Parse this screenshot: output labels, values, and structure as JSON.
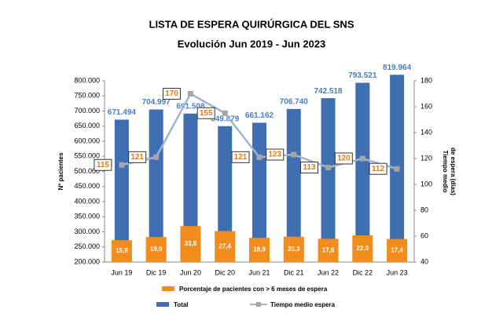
{
  "chart_data": {
    "type": "bar",
    "title": "LISTA DE ESPERA QUIRÚRGICA DEL SNS",
    "subtitle": "Evolución Jun 2019 - Jun 2023",
    "y_label": "Nº pacientes",
    "y2_label": [
      "Tiempo medio",
      "de espera (días)"
    ],
    "categories": [
      "Jun 19",
      "Dic 19",
      "Jun 20",
      "Dic 20",
      "Jun 21",
      "Dic 21",
      "Jun 22",
      "Dic 22",
      "Jun 23"
    ],
    "ylim": [
      200000,
      800000
    ],
    "yticks": [
      {
        "value": 200000,
        "label": "200.000"
      },
      {
        "value": 250000,
        "label": "250.000"
      },
      {
        "value": 300000,
        "label": "300.000"
      },
      {
        "value": 350000,
        "label": "350.000"
      },
      {
        "value": 400000,
        "label": "400.000"
      },
      {
        "value": 450000,
        "label": "450.000"
      },
      {
        "value": 500000,
        "label": "500.000"
      },
      {
        "value": 550000,
        "label": "550.000"
      },
      {
        "value": 600000,
        "label": "600.000"
      },
      {
        "value": 650000,
        "label": "650.000"
      },
      {
        "value": 700000,
        "label": "700.000"
      },
      {
        "value": 750000,
        "label": "750.000"
      },
      {
        "value": 800000,
        "label": "800.000"
      }
    ],
    "y2lim": [
      40,
      180
    ],
    "y2ticks": [
      40,
      60,
      80,
      100,
      120,
      140,
      160,
      180
    ],
    "series": [
      {
        "name": "Total",
        "type": "bar",
        "color": "#3f6fb0",
        "values": [
          671494,
          704997,
          691508,
          649879,
          661162,
          706740,
          742518,
          793521,
          819964
        ],
        "value_labels": [
          "671.494",
          "704.997",
          "691.508",
          "649.879",
          "661.162",
          "706.740",
          "742.518",
          "793.521",
          "819.964"
        ]
      },
      {
        "name": "Porcentaje de pacientes con > 6 meses  de espera",
        "type": "bar",
        "color": "#f28c1c",
        "values": [
          15.9,
          19.9,
          33.8,
          27.4,
          18.9,
          20.3,
          17.6,
          22.0,
          17.4
        ],
        "value_labels": [
          "15,9",
          "19,9",
          "33,8",
          "27,4",
          "18,9",
          "20,3",
          "17,6",
          "22,0",
          "17,4"
        ]
      },
      {
        "name": "Tiempo medio espera",
        "type": "line",
        "axis": "y2",
        "color": "#9fb4d6",
        "marker_color": "#a6a6a6",
        "values": [
          115,
          121,
          170,
          155,
          121,
          123,
          113,
          120,
          112
        ]
      }
    ]
  }
}
